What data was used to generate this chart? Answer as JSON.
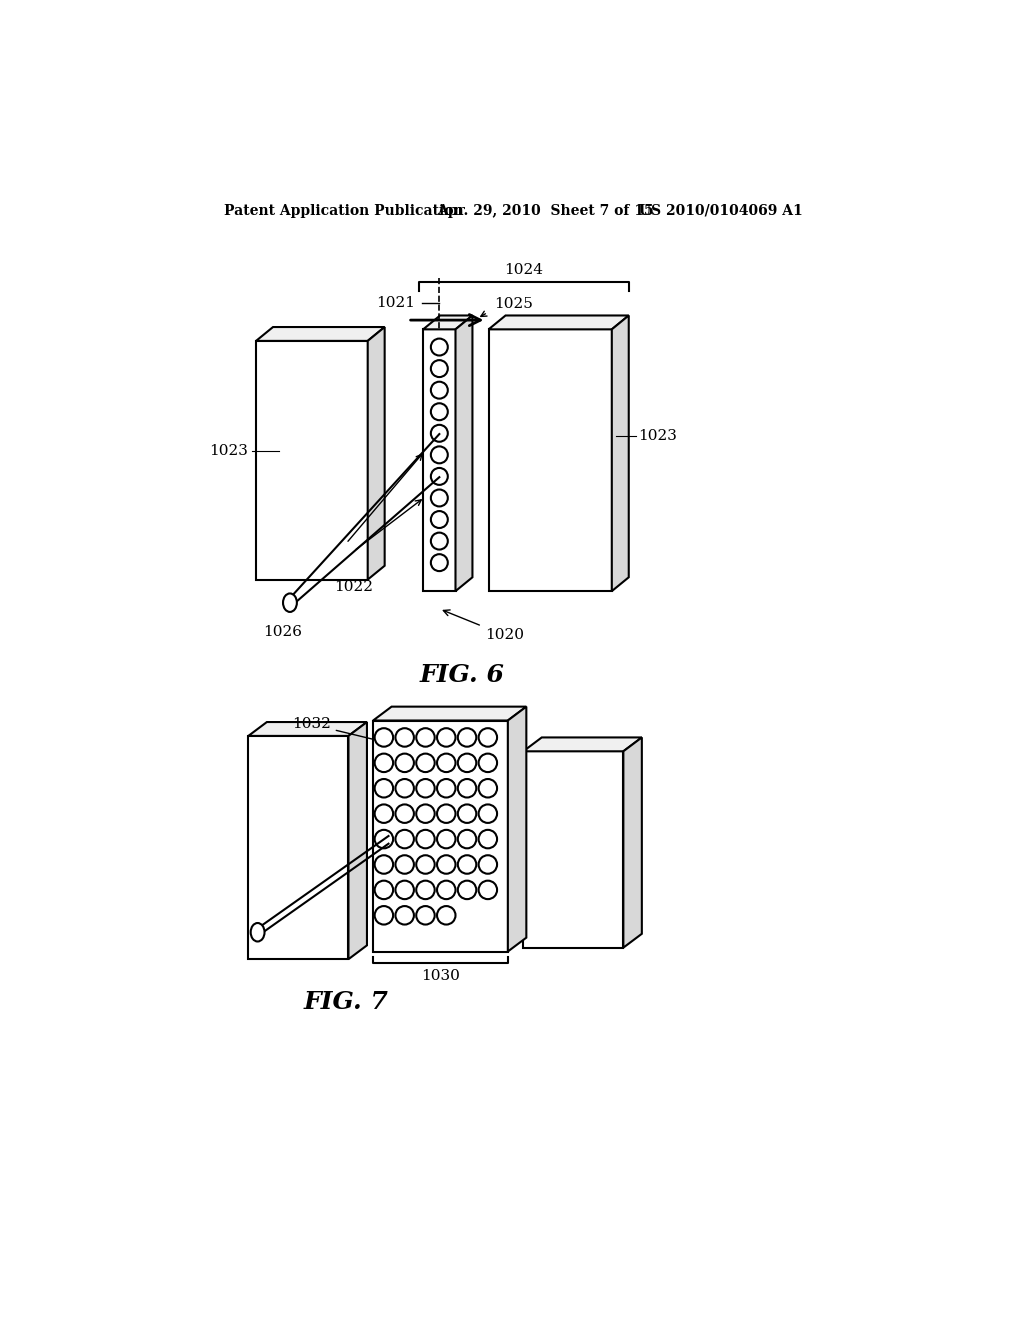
{
  "bg_color": "#ffffff",
  "header_text1": "Patent Application Publication",
  "header_text2": "Apr. 29, 2010  Sheet 7 of 15",
  "header_text3": "US 2010/0104069 A1",
  "fig6_label": "FIG. 6",
  "fig7_label": "FIG. 7",
  "line_color": "#000000",
  "lw": 1.5,
  "face_light": "#f0f0f0",
  "face_mid": "#d8d8d8",
  "face_dark": "#b8b8b8",
  "face_white": "#ffffff"
}
